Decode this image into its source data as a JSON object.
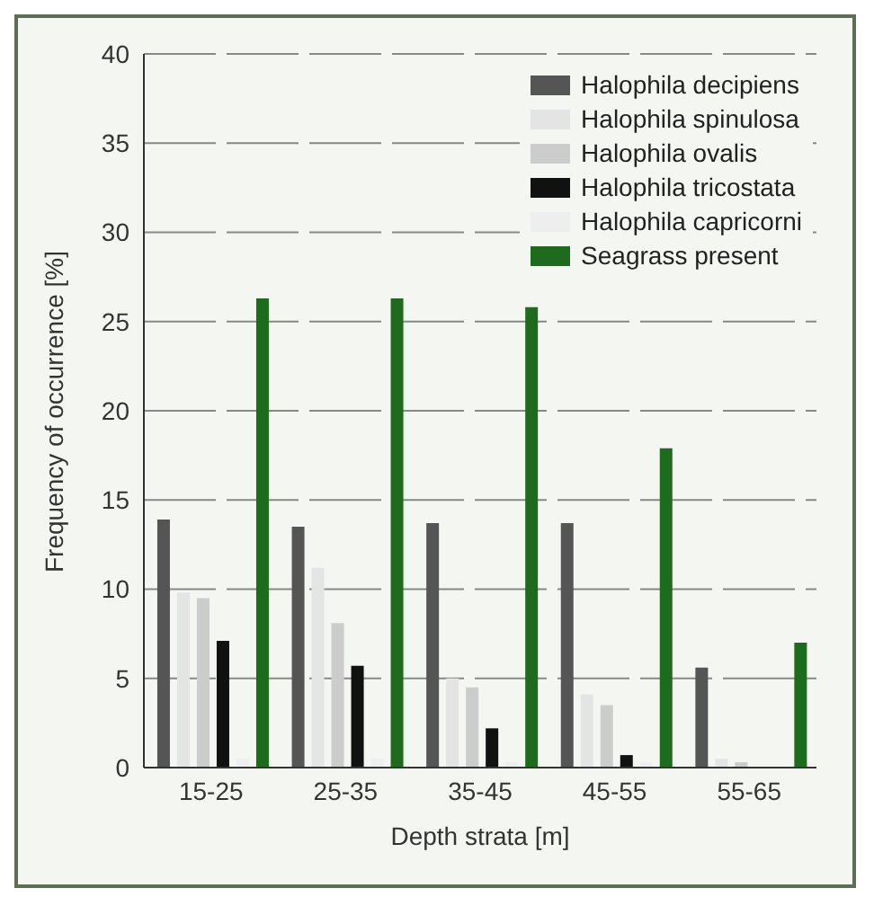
{
  "chart_data": {
    "type": "bar",
    "xlabel": "Depth strata [m]",
    "ylabel": "Frequency of occurrence [%]",
    "categories": [
      "15-25",
      "25-35",
      "35-45",
      "45-55",
      "55-65"
    ],
    "series": [
      {
        "name": "Halophila decipiens",
        "color": "#555555",
        "values": [
          13.9,
          13.5,
          13.7,
          13.7,
          5.6
        ]
      },
      {
        "name": "Halophila spinulosa",
        "color": "#e4e4e4",
        "values": [
          9.8,
          11.2,
          5,
          4.1,
          0.5
        ]
      },
      {
        "name": "Halophila ovalis",
        "color": "#cccccc",
        "values": [
          9.5,
          8.1,
          4.5,
          3.5,
          0.3
        ]
      },
      {
        "name": "Halophila tricostata",
        "color": "#111111",
        "values": [
          7.1,
          5.7,
          2.2,
          0.7,
          0
        ]
      },
      {
        "name": "Halophila capricorni",
        "color": "#eeeeee",
        "values": [
          0.5,
          0.5,
          0.3,
          0.3,
          0
        ]
      },
      {
        "name": "Seagrass present",
        "color": "#1e6b1e",
        "values": [
          26.3,
          26.3,
          25.8,
          17.9,
          7
        ]
      }
    ],
    "ylim": [
      0,
      40
    ],
    "yticks": [
      0,
      5,
      10,
      15,
      20,
      25,
      30,
      35,
      40
    ],
    "grid": "y",
    "legend": "top right"
  }
}
